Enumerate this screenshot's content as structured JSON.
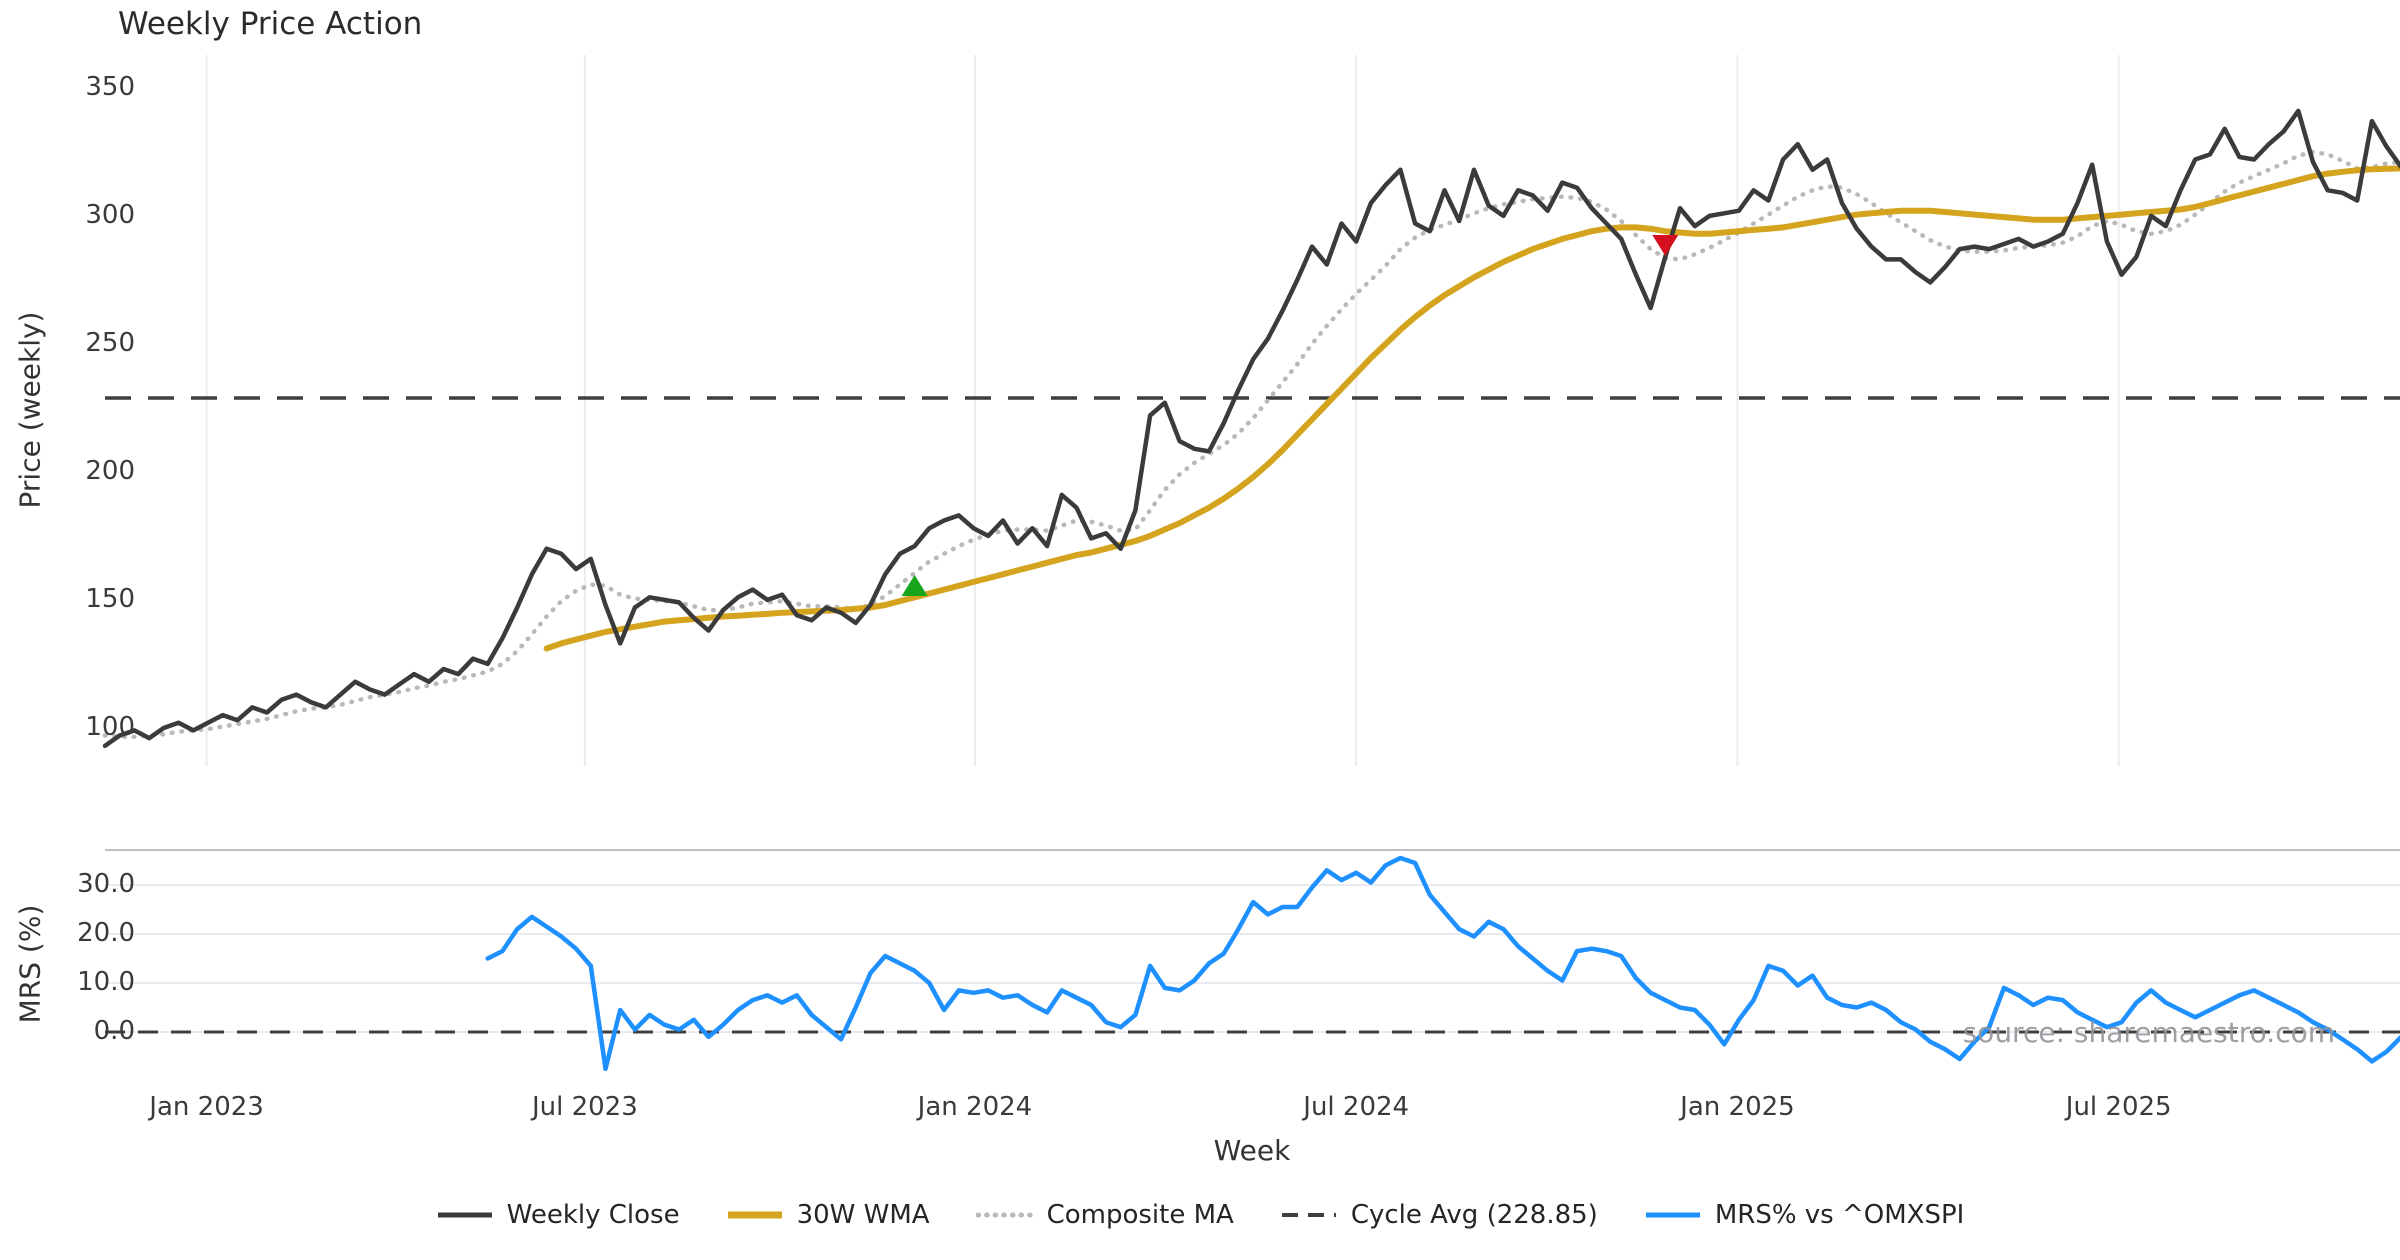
{
  "title": "Weekly Price Action",
  "watermark": "source: sharemaestro.com",
  "axes": {
    "price_label": "Price (weekly)",
    "mrs_label": "MRS (%)",
    "x_label": "Week"
  },
  "colors": {
    "weekly_close": "#3b3b3b",
    "wma_30w": "#d5a41f",
    "composite_ma": "#b9b9b9",
    "cycle_avg": "#3f3f3f",
    "mrs_line": "#1e90ff",
    "buy_marker": "#18a51c",
    "sell_marker": "#d40f20",
    "gridline": "#ececec",
    "mrs_gridline": "#e9e9f1",
    "mrs_top_spine": "#bfbfc7",
    "tick_text": "#3a3a3a"
  },
  "legend": [
    {
      "id": "weekly-close",
      "label": "Weekly Close",
      "color": "#3b3b3b",
      "style": "solid",
      "width": 5
    },
    {
      "id": "wma-30w",
      "label": "30W WMA",
      "color": "#d5a41f",
      "style": "solid",
      "width": 7
    },
    {
      "id": "composite-ma",
      "label": "Composite MA",
      "color": "#b9b9b9",
      "style": "dotted",
      "width": 5
    },
    {
      "id": "cycle-avg",
      "label": "Cycle Avg (228.85)",
      "color": "#3f3f3f",
      "style": "dashed",
      "width": 4
    },
    {
      "id": "mrs",
      "label": "MRS% vs ^OMXSPI",
      "color": "#1e90ff",
      "style": "solid",
      "width": 5
    }
  ],
  "chart_data": [
    {
      "type": "line",
      "panel": "price",
      "title": "Weekly Price Action",
      "ylabel": "Price (weekly)",
      "ylim": [
        85,
        368
      ],
      "grid": "vertical-only",
      "yticks": [
        {
          "label": "350",
          "value": 350
        },
        {
          "label": "300",
          "value": 300
        },
        {
          "label": "250",
          "value": 250
        },
        {
          "label": "200",
          "value": 200
        },
        {
          "label": "150",
          "value": 150
        },
        {
          "label": "100",
          "value": 100
        }
      ],
      "xticks": [
        {
          "label": "Jan 2023",
          "week": 6.9
        },
        {
          "label": "Jul 2023",
          "week": 32.6
        },
        {
          "label": "Jan 2024",
          "week": 59.1
        },
        {
          "label": "Jul 2024",
          "week": 85.0
        },
        {
          "label": "Jan 2025",
          "week": 110.9
        },
        {
          "label": "Jul 2025",
          "week": 136.8
        }
      ],
      "cycle_avg": 228.85,
      "series": [
        {
          "name": "Weekly Close",
          "color": "#3b3b3b",
          "style": "solid",
          "width": 4.5,
          "start_week": 0,
          "values": [
            93,
            97,
            99,
            96,
            100,
            102,
            99,
            102,
            105,
            103,
            108,
            106,
            111,
            113,
            110,
            108,
            113,
            118,
            115,
            113,
            117,
            121,
            118,
            123,
            121,
            127,
            125,
            135,
            147,
            160,
            170,
            168,
            162,
            166,
            148,
            133,
            147,
            151,
            150,
            149,
            143,
            138,
            146,
            151,
            154,
            150,
            152,
            144,
            142,
            147,
            145,
            141,
            148,
            160,
            168,
            171,
            178,
            181,
            183,
            178,
            175,
            181,
            172,
            178,
            171,
            191,
            186,
            174,
            176,
            170,
            185,
            222,
            227,
            212,
            209,
            208,
            219,
            232,
            244,
            252,
            263,
            275,
            288,
            281,
            297,
            290,
            305,
            312,
            318,
            297,
            294,
            310,
            298,
            318,
            304,
            300,
            310,
            308,
            302,
            313,
            311,
            303,
            297,
            291,
            277,
            264,
            284,
            303,
            296,
            300,
            301,
            302,
            310,
            306,
            322,
            328,
            318,
            322,
            305,
            295,
            288,
            283,
            283,
            278,
            274,
            280,
            287,
            288,
            287,
            289,
            291,
            288,
            290,
            293,
            305,
            320,
            290,
            277,
            284,
            300,
            296,
            310,
            322,
            324,
            334,
            323,
            322,
            328,
            333,
            341,
            321,
            310,
            309,
            306,
            337,
            327,
            319
          ]
        },
        {
          "name": "30W WMA",
          "color": "#d5a41f",
          "style": "solid",
          "width": 6,
          "start_week": 30,
          "values": [
            131,
            133,
            134.5,
            136,
            137.5,
            138.5,
            139.5,
            140.5,
            141.5,
            142,
            142.5,
            143,
            143.5,
            143.8,
            144.2,
            144.5,
            145,
            145.2,
            145.5,
            145.8,
            146,
            146.5,
            147,
            148,
            149.5,
            151,
            152.5,
            154,
            155.5,
            157,
            158.5,
            160,
            161.5,
            163,
            164.5,
            166,
            167.5,
            168.5,
            170,
            171.5,
            173,
            175,
            177.5,
            180,
            183,
            186,
            189.5,
            193.5,
            198,
            203,
            208.5,
            214.5,
            220.5,
            226.5,
            232.5,
            238.5,
            244.5,
            250,
            255.5,
            260.5,
            265,
            269,
            272.5,
            276,
            279,
            282,
            284.5,
            287,
            289,
            291,
            292.5,
            294,
            295,
            295.5,
            295.5,
            295,
            294,
            293.5,
            293,
            293,
            293.5,
            294,
            294.5,
            295,
            295.5,
            296.5,
            297.5,
            298.5,
            299.5,
            300.5,
            301,
            301.5,
            302,
            302,
            302,
            301.5,
            301,
            300.5,
            300,
            299.5,
            299,
            298.5,
            298.5,
            298.5,
            299,
            299.5,
            300,
            300.5,
            301,
            301.5,
            302,
            302.5,
            303.5,
            305,
            306.5,
            308,
            309.5,
            311,
            312.5,
            314,
            315.5,
            316.5,
            317.2,
            317.8,
            318.2,
            318.4,
            318.5
          ]
        },
        {
          "name": "Composite MA",
          "color": "#b9b9b9",
          "style": "dotted",
          "width": 4.5,
          "start_week": 0,
          "values": [
            97,
            96.5,
            96.5,
            97,
            97.5,
            98.5,
            99,
            99.5,
            100.5,
            101.5,
            102.5,
            103.5,
            105,
            106.5,
            107.5,
            108,
            109,
            110.5,
            112,
            113,
            114,
            115.5,
            116.5,
            118,
            119,
            120.5,
            122,
            125,
            130,
            136.5,
            143.5,
            149.5,
            153.5,
            156,
            155.5,
            152,
            150.5,
            150,
            149.5,
            149,
            147.5,
            146,
            146,
            147,
            148.5,
            149,
            149.5,
            148.5,
            147.5,
            147.5,
            147,
            146.5,
            148,
            151.5,
            156,
            160.5,
            165,
            168,
            171,
            173.5,
            175.5,
            177,
            177.5,
            177.5,
            177,
            179,
            181,
            180.5,
            179,
            177,
            177.5,
            185,
            193,
            199,
            203.5,
            207,
            210.5,
            215,
            221,
            228,
            235,
            242,
            250,
            257,
            263.5,
            269.5,
            275,
            280.5,
            287,
            291.5,
            294.5,
            296.5,
            298.5,
            301,
            303,
            304.5,
            305.5,
            306.5,
            307,
            307.5,
            307,
            305.5,
            302.5,
            298,
            292.5,
            287,
            283.5,
            283,
            285,
            287.5,
            290.5,
            293.5,
            297,
            300.5,
            304,
            307.5,
            310,
            311.5,
            311,
            308.5,
            305,
            301,
            297.5,
            294,
            290.5,
            288,
            286.5,
            286,
            286,
            286.5,
            287.5,
            288,
            288.5,
            289.5,
            292,
            296,
            298,
            296.5,
            294,
            293,
            294,
            296.5,
            300.5,
            305,
            309.5,
            313,
            315.5,
            318,
            320.5,
            323.5,
            325,
            324,
            321.5,
            318.5,
            319,
            320.5,
            321
          ]
        }
      ],
      "markers": [
        {
          "shape": "triangle-up",
          "name": "buy-signal",
          "color": "#18a51c",
          "week": 55,
          "value": 155
        },
        {
          "shape": "triangle-down",
          "name": "sell-signal",
          "color": "#d40f20",
          "week": 106,
          "value": 289
        }
      ]
    },
    {
      "type": "line",
      "panel": "mrs",
      "ylabel": "MRS (%)",
      "xlabel": "Week",
      "ylim": [
        -9.5,
        37.5
      ],
      "grid": "horizontal",
      "zero_line": 0,
      "yticks": [
        {
          "label": "30.0",
          "value": 30
        },
        {
          "label": "20.0",
          "value": 20
        },
        {
          "label": "10.0",
          "value": 10
        },
        {
          "label": "0.0",
          "value": 0
        }
      ],
      "series": [
        {
          "name": "MRS% vs ^OMXSPI",
          "color": "#1e90ff",
          "style": "solid",
          "width": 4.5,
          "start_week": 26,
          "values": [
            15,
            16.5,
            21,
            23.5,
            21.5,
            19.5,
            17,
            13.5,
            -7.5,
            4.5,
            0.5,
            3.5,
            1.5,
            0.5,
            2.5,
            -1,
            1.5,
            4.5,
            6.5,
            7.5,
            6,
            7.5,
            3.5,
            1,
            -1.5,
            5,
            12,
            15.5,
            14,
            12.5,
            10,
            4.5,
            8.5,
            8,
            8.5,
            7,
            7.5,
            5.5,
            4,
            8.5,
            7,
            5.5,
            2,
            1,
            3.5,
            13.5,
            9,
            8.5,
            10.5,
            14,
            16,
            21,
            26.5,
            24,
            25.5,
            25.5,
            29.5,
            33,
            31,
            32.5,
            30.5,
            34,
            35.5,
            34.5,
            28,
            24.5,
            21,
            19.5,
            22.5,
            21,
            17.5,
            15,
            12.5,
            10.5,
            16.5,
            17,
            16.5,
            15.5,
            11,
            8,
            6.5,
            5,
            4.5,
            1.5,
            -2.5,
            2.5,
            6.5,
            13.5,
            12.5,
            9.5,
            11.5,
            7,
            5.5,
            5,
            6,
            4.5,
            2,
            0.5,
            -2,
            -3.5,
            -5.5,
            -2,
            1,
            9,
            7.5,
            5.5,
            7,
            6.5,
            4,
            2.5,
            1,
            2,
            6,
            8.5,
            6,
            4.5,
            3,
            4.5,
            6,
            7.5,
            8.5,
            7,
            5.5,
            4,
            2,
            0.5,
            -1.5,
            -3.5,
            -6,
            -4,
            -1
          ]
        }
      ]
    }
  ]
}
